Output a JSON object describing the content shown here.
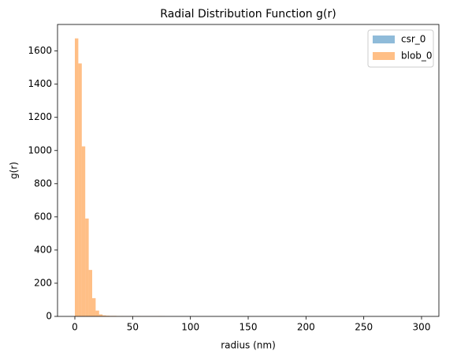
{
  "chart_data": {
    "type": "histogram",
    "title": "Radial Distribution Function g(r)",
    "x_label": "radius (nm)",
    "y_label": "g(r)",
    "bins": [
      0,
      3,
      6,
      9,
      12,
      15,
      18,
      21,
      24,
      27,
      30,
      33,
      36,
      39,
      42,
      45,
      48,
      51,
      54,
      57,
      60,
      63,
      66,
      69,
      72,
      75,
      78,
      81,
      84,
      87,
      90,
      93,
      96,
      99,
      102,
      105,
      108,
      111,
      114,
      117,
      120,
      123,
      126,
      129,
      132,
      135,
      138,
      141,
      144,
      147,
      150,
      153,
      156,
      159,
      162,
      165,
      168,
      171,
      174,
      177,
      180,
      183,
      186,
      189,
      192,
      195,
      198,
      201,
      204,
      207,
      210,
      213,
      216,
      219,
      222,
      225,
      228,
      231,
      234,
      237,
      240,
      243,
      246,
      249,
      252,
      255,
      258,
      261,
      264,
      267,
      270,
      273,
      276,
      279,
      282,
      285,
      288,
      291,
      294,
      297,
      300
    ],
    "series": [
      {
        "name": "csr_0",
        "color": "#1f77b4",
        "values": [
          0,
          0,
          0,
          0,
          0,
          0,
          0,
          0,
          0,
          0,
          0,
          0,
          0,
          0,
          0,
          0,
          0,
          0,
          0,
          0,
          0,
          0,
          0,
          0,
          0,
          0,
          0,
          0,
          0,
          0,
          0,
          0,
          0,
          0,
          0,
          0,
          0,
          0,
          0,
          0,
          0,
          0,
          0,
          0,
          0,
          0,
          0,
          0,
          0,
          0,
          0,
          0,
          0,
          0,
          0,
          0,
          0,
          0,
          0,
          0,
          0,
          0,
          0,
          0,
          0,
          0,
          0,
          0,
          0,
          0,
          0,
          0,
          0,
          0,
          0,
          0,
          0,
          0,
          0,
          0,
          0,
          0,
          0,
          0,
          0,
          0,
          0,
          0,
          0,
          0,
          0,
          0,
          0,
          0,
          0,
          0,
          0,
          0,
          0,
          0
        ]
      },
      {
        "name": "blob_0",
        "color": "#ff7f0e",
        "values": [
          1676,
          1525,
          1025,
          590,
          280,
          110,
          35,
          12,
          6,
          4,
          3,
          3,
          2,
          2,
          1,
          1,
          2,
          1,
          2,
          1,
          1,
          1,
          1,
          1,
          2,
          1,
          0,
          0,
          0,
          0,
          0,
          0,
          0,
          0,
          0,
          0,
          0,
          0,
          0,
          0,
          0,
          0,
          0,
          0,
          0,
          0,
          0,
          0,
          0,
          0,
          0,
          0,
          0,
          0,
          0,
          0,
          0,
          0,
          0,
          0,
          0,
          0,
          0,
          0,
          0,
          0,
          0,
          0,
          0,
          0,
          0,
          0,
          0,
          0,
          0,
          0,
          0,
          0,
          0,
          0,
          0,
          0,
          0,
          0,
          0,
          0,
          0,
          0,
          0,
          0,
          0,
          0,
          0,
          0,
          0,
          0,
          0,
          0,
          0,
          0
        ]
      }
    ],
    "xlim": [
      -15,
      315
    ],
    "xticks": [
      0,
      50,
      100,
      150,
      200,
      250,
      300
    ],
    "ylim": [
      0,
      1760
    ],
    "yticks": [
      0,
      200,
      400,
      600,
      800,
      1000,
      1200,
      1400,
      1600
    ],
    "grid": false,
    "legend": "upper right",
    "opacity": 0.5
  }
}
